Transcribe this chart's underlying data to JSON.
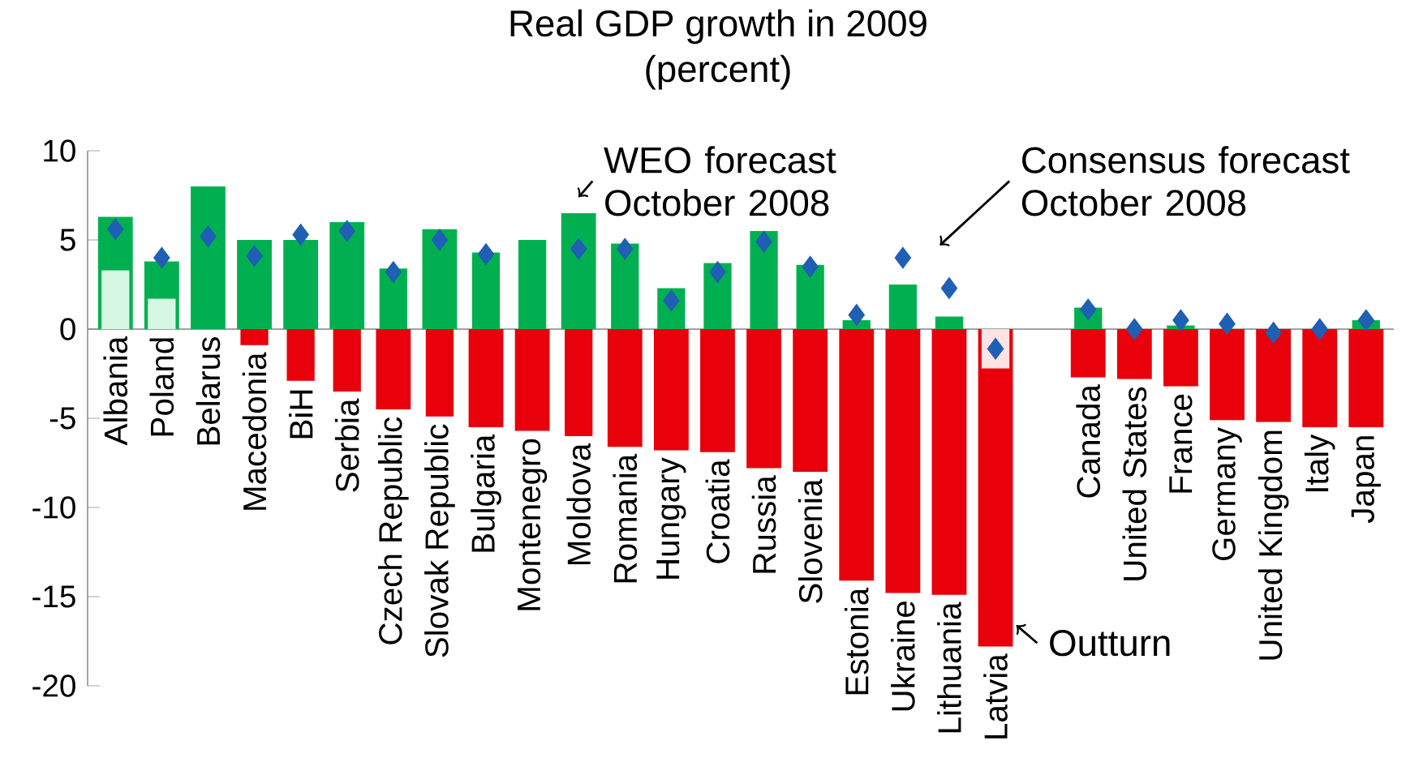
{
  "chart_data": {
    "type": "bar",
    "title": "Real GDP growth in 2009",
    "subtitle": "(percent)",
    "categories": [
      "Albania",
      "Poland",
      "Belarus",
      "Macedonia",
      "BiH",
      "Serbia",
      "Czech Republic",
      "Slovak Republic",
      "Bulgaria",
      "Montenegro",
      "Moldova",
      "Romania",
      "Hungary",
      "Croatia",
      "Russia",
      "Slovenia",
      "Estonia",
      "Ukraine",
      "Lithuania",
      "Latvia",
      null,
      "Canada",
      "United States",
      "France",
      "Germany",
      "United Kingdom",
      "Italy",
      "Japan"
    ],
    "series": [
      {
        "name": "WEO forecast October 2008",
        "type": "bar",
        "colors": [
          "#00b050",
          "#00b050",
          "#00b050",
          "#00b050",
          "#00b050",
          "#00b050",
          "#00b050",
          "#00b050",
          "#00b050",
          "#00b050",
          "#00b050",
          "#00b050",
          "#00b050",
          "#00b050",
          "#00b050",
          "#00b050",
          "#00b050",
          "#00b050",
          "#00b050",
          "#fde3e3",
          null,
          "#00b050",
          "#00b050",
          "#00b050",
          "#00b050",
          "#00b050",
          "#00b050",
          "#00b050"
        ],
        "values": [
          6.3,
          3.8,
          8.0,
          5.0,
          5.0,
          6.0,
          3.4,
          5.6,
          4.3,
          5.0,
          6.5,
          4.8,
          2.3,
          3.7,
          5.5,
          3.6,
          0.5,
          2.5,
          0.7,
          -2.2,
          null,
          1.2,
          null,
          0.2,
          0.0,
          0.0,
          0.0,
          0.5
        ]
      },
      {
        "name": "Outturn",
        "type": "bar",
        "colors": [
          "#d6f7e2",
          "#d6f7e2",
          null,
          "#e8000b",
          "#e8000b",
          "#e8000b",
          "#e8000b",
          "#e8000b",
          "#e8000b",
          "#e8000b",
          "#e8000b",
          "#e8000b",
          "#e8000b",
          "#e8000b",
          "#e8000b",
          "#e8000b",
          "#e8000b",
          "#e8000b",
          "#e8000b",
          "#e8000b",
          null,
          "#e8000b",
          "#e8000b",
          "#e8000b",
          "#e8000b",
          "#e8000b",
          "#e8000b",
          "#e8000b"
        ],
        "values": [
          3.3,
          1.7,
          null,
          -0.9,
          -2.9,
          -3.5,
          -4.5,
          -4.9,
          -5.5,
          -5.7,
          -6.0,
          -6.6,
          -6.8,
          -6.9,
          -7.8,
          -8.0,
          -14.1,
          -14.8,
          -14.9,
          -17.8,
          null,
          -2.7,
          -2.8,
          -3.2,
          -5.1,
          -5.2,
          -5.5,
          -5.5
        ]
      },
      {
        "name": "Consensus forecast October 2008",
        "type": "scatter",
        "marker": "diamond",
        "color": "#1f5fb4",
        "values": [
          5.6,
          4.0,
          5.2,
          4.1,
          5.3,
          5.5,
          3.2,
          5.0,
          4.2,
          null,
          4.5,
          4.5,
          1.6,
          3.2,
          4.9,
          3.5,
          0.8,
          4.0,
          2.3,
          -1.1,
          null,
          1.1,
          0.0,
          0.5,
          0.3,
          -0.2,
          0.0,
          0.5
        ]
      }
    ],
    "ylim": [
      -20,
      10
    ],
    "yticks": [
      -20,
      -15,
      -10,
      -5,
      0,
      5,
      10
    ]
  }
}
